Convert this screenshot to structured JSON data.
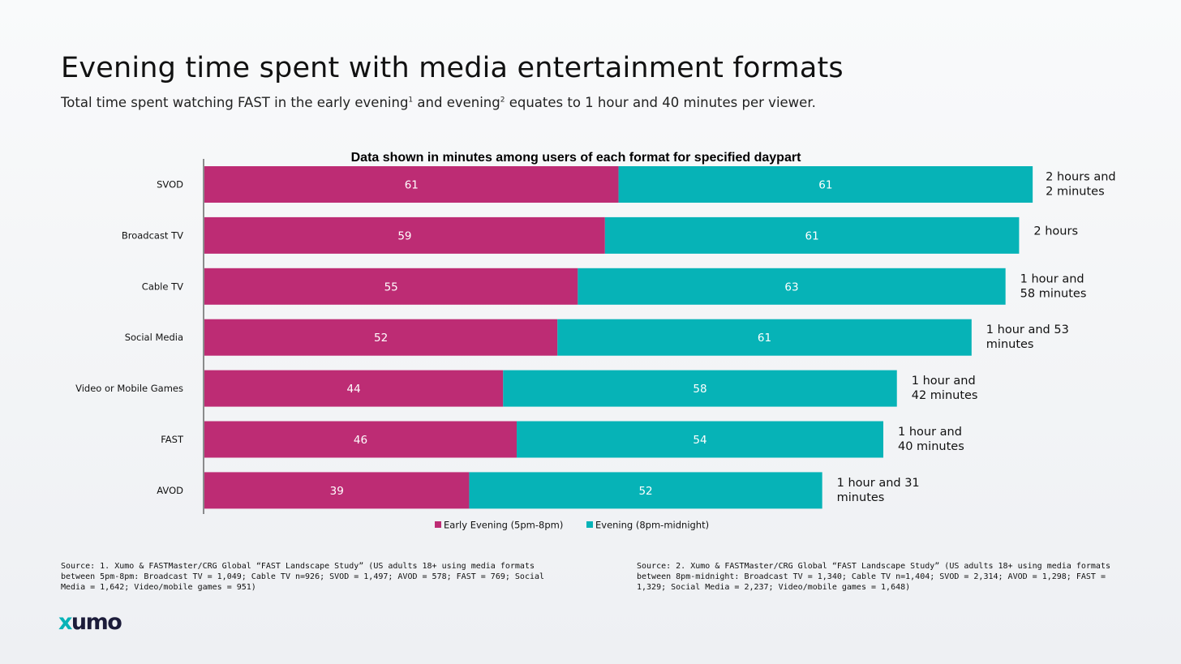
{
  "page": {
    "title": "Evening time spent with media entertainment formats",
    "subtitle_parts": {
      "a": "Total time spent watching FAST in the early evening",
      "sup1": "1",
      "b": " and evening",
      "sup2": "2",
      "c": " equates to 1 hour and 40 minutes per viewer."
    },
    "source_left": "Source: 1. Xumo & FASTMaster/CRG Global “FAST Landscape Study” (US adults 18+ using media formats between 5pm-8pm: Broadcast TV = 1,049; Cable TV n=926; SVOD = 1,497; AVOD = 578; FAST = 769; Social Media = 1,642; Video/mobile games = 951)",
    "source_right": "Source: 2. Xumo & FASTMaster/CRG Global “FAST Landscape Study” (US adults 18+ using media formats between 8pm-midnight: Broadcast TV = 1,340; Cable TV n=1,404; SVOD = 2,314; AVOD = 1,298; FAST = 1,329; Social Media = 2,237; Video/mobile games = 1,648)",
    "logo": {
      "part1": "x",
      "part2": "umo"
    }
  },
  "chart_data": {
    "type": "bar",
    "orientation": "horizontal",
    "stacked": true,
    "title": "Data shown in minutes among users of each format for specified daypart",
    "categories": [
      "SVOD",
      "Broadcast TV",
      "Cable TV",
      "Social Media",
      "Video or Mobile Games",
      "FAST",
      "AVOD"
    ],
    "series": [
      {
        "name": "Early Evening (5pm-8pm)",
        "color": "#bd2c74",
        "values": [
          61,
          59,
          55,
          52,
          44,
          46,
          39
        ]
      },
      {
        "name": "Evening (8pm-midnight)",
        "color": "#06b3b7",
        "values": [
          61,
          61,
          63,
          61,
          58,
          54,
          52
        ]
      }
    ],
    "total_labels": [
      [
        "2 hours and",
        "2 minutes"
      ],
      [
        "2 hours"
      ],
      [
        "1 hour and",
        "58 minutes"
      ],
      [
        "1 hour and 53",
        "minutes"
      ],
      [
        "1 hour and",
        "42 minutes"
      ],
      [
        "1 hour and",
        "40 minutes"
      ],
      [
        "1 hour and 31",
        "minutes"
      ]
    ],
    "legend_position": "bottom",
    "grid": false
  }
}
